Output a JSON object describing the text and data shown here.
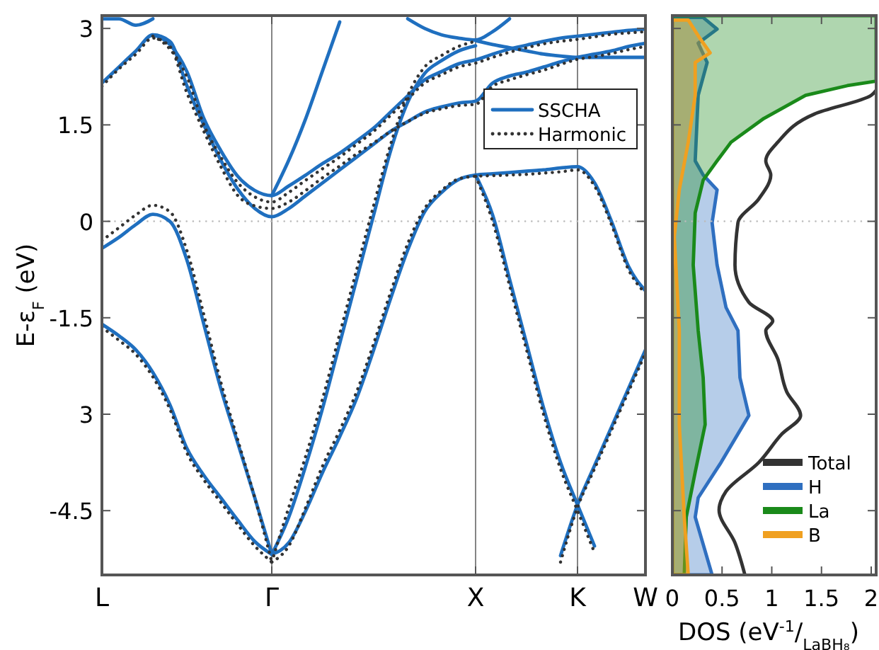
{
  "chart_data": [
    {
      "type": "line",
      "ylabel": "E-ε$_{F}$ (eV)",
      "categories": [
        "L",
        null,
        null,
        null,
        null,
        null,
        null,
        null,
        null,
        null,
        "Γ",
        null,
        null,
        null,
        null,
        null,
        null,
        null,
        null,
        null,
        null,
        null,
        "X",
        null,
        null,
        null,
        null,
        null,
        "K",
        null,
        null,
        null,
        "W"
      ],
      "ylim": [
        -5.5,
        3.2
      ],
      "yticks": [
        {
          "value": 3,
          "label": "3"
        },
        1.5,
        0,
        -1.5,
        {
          "value": -3,
          "label": "3"
        },
        -4.5
      ],
      "grid": "x",
      "legend": "top right",
      "ref_lines": [
        {
          "axis": "y",
          "value": 0,
          "color": "#bbbbbb",
          "line_style": "dotted"
        }
      ],
      "series": [
        {
          "name": "SSCHA",
          "color": "#1f6fbf",
          "line_style": "solid",
          "values": [
            -1.6,
            -1.78,
            -2.0,
            -2.35,
            -2.85,
            -3.53,
            -3.95,
            -4.3,
            -4.65,
            -4.98,
            -5.18,
            null,
            null,
            null,
            null,
            null,
            null,
            null,
            null,
            null,
            null,
            null,
            null,
            null,
            null,
            null,
            null,
            null,
            null,
            null,
            null,
            null,
            null
          ]
        },
        {
          "color": "#1f6fbf",
          "line_style": "solid",
          "values": [
            -0.42,
            -0.25,
            -0.05,
            0.11,
            0.0,
            -0.6,
            -1.6,
            -2.6,
            -3.45,
            -4.3,
            -5.18,
            null,
            null,
            null,
            null,
            null,
            null,
            null,
            null,
            null,
            null,
            null,
            null,
            null,
            null,
            null,
            null,
            null,
            null,
            null,
            null,
            null,
            null
          ]
        },
        {
          "color": "#1f6fbf",
          "line_style": "solid",
          "values": [
            null,
            null,
            null,
            null,
            null,
            null,
            null,
            null,
            null,
            null,
            -5.18,
            -4.6,
            -3.8,
            -2.9,
            -1.9,
            -0.9,
            0.1,
            1.1,
            1.85,
            2.3,
            2.5,
            2.65,
            2.73,
            null,
            null,
            null,
            null,
            null,
            null,
            null,
            null,
            null,
            null
          ]
        },
        {
          "color": "#1f6fbf",
          "line_style": "solid",
          "values": [
            null,
            null,
            null,
            null,
            null,
            null,
            null,
            null,
            null,
            null,
            -5.18,
            -5.0,
            -4.5,
            -3.9,
            -3.35,
            -2.75,
            -2.0,
            -1.2,
            -0.45,
            0.15,
            0.45,
            0.65,
            0.72,
            0.74,
            0.76,
            0.78,
            0.8,
            0.83,
            0.85,
            0.6,
            0.0,
            -0.7,
            -1.08
          ]
        },
        {
          "color": "#1f6fbf",
          "line_style": "solid",
          "values": [
            null,
            null,
            null,
            null,
            null,
            null,
            null,
            null,
            null,
            null,
            null,
            null,
            null,
            null,
            null,
            null,
            null,
            null,
            null,
            null,
            null,
            null,
            0.72,
            0.1,
            -0.9,
            -1.9,
            -2.9,
            -3.75,
            -4.41,
            -5.05,
            null,
            null,
            null
          ]
        },
        {
          "color": "#1f6fbf",
          "line_style": "solid",
          "values": [
            null,
            null,
            null,
            null,
            null,
            null,
            null,
            null,
            null,
            null,
            null,
            null,
            null,
            null,
            null,
            null,
            null,
            null,
            null,
            null,
            null,
            null,
            null,
            null,
            null,
            null,
            null,
            -5.2,
            -4.41,
            -3.8,
            -3.2,
            -2.6,
            -2.0
          ]
        },
        {
          "color": "#1f6fbf",
          "line_style": "solid",
          "values": [
            2.15,
            2.4,
            2.65,
            2.9,
            2.8,
            2.11,
            1.5,
            0.95,
            0.5,
            0.2,
            0.07,
            0.2,
            0.4,
            0.6,
            0.8,
            1.0,
            1.2,
            1.4,
            1.55,
            1.7,
            1.78,
            1.84,
            1.87,
            2.15,
            2.26,
            2.32,
            2.4,
            2.48,
            2.55,
            2.6,
            2.65,
            2.72,
            2.77
          ]
        },
        {
          "color": "#1f6fbf",
          "line_style": "solid",
          "values": [
            null,
            null,
            null,
            2.9,
            2.75,
            2.33,
            1.6,
            1.1,
            0.7,
            0.48,
            0.4,
            0.55,
            0.72,
            0.9,
            1.06,
            1.25,
            1.45,
            1.7,
            1.95,
            2.2,
            2.33,
            2.45,
            2.51,
            2.6,
            2.68,
            2.74,
            2.8,
            2.85,
            2.88,
            2.91,
            2.94,
            2.97,
            2.99
          ]
        },
        {
          "color": "#1f6fbf",
          "line_style": "solid",
          "values": [
            null,
            null,
            null,
            null,
            null,
            null,
            null,
            null,
            null,
            null,
            0.4,
            0.95,
            1.6,
            2.35,
            3.1,
            null,
            null,
            null,
            null,
            null,
            null,
            null,
            null,
            null,
            null,
            null,
            null,
            null,
            null,
            null,
            null,
            null,
            null
          ]
        },
        {
          "color": "#1f6fbf",
          "line_style": "solid",
          "values": [
            3.15,
            3.15,
            3.05,
            3.15,
            null,
            null,
            null,
            null,
            null,
            null,
            null,
            null,
            null,
            null,
            null,
            null,
            null,
            null,
            null,
            null,
            null,
            null,
            null,
            null,
            null,
            null,
            null,
            null,
            null,
            null,
            null,
            null,
            null
          ]
        },
        {
          "color": "#1f6fbf",
          "line_style": "solid",
          "values": [
            null,
            null,
            null,
            null,
            null,
            null,
            null,
            null,
            null,
            null,
            null,
            null,
            null,
            null,
            null,
            null,
            null,
            null,
            3.15,
            3.0,
            2.9,
            2.85,
            2.82,
            2.95,
            3.15,
            null,
            null,
            null,
            null,
            null,
            null,
            null,
            null
          ]
        },
        {
          "color": "#1f6fbf",
          "line_style": "solid",
          "values": [
            null,
            null,
            null,
            null,
            null,
            null,
            null,
            null,
            null,
            null,
            null,
            null,
            null,
            null,
            null,
            null,
            null,
            null,
            null,
            null,
            null,
            null,
            2.81,
            2.75,
            2.7,
            2.65,
            2.6,
            2.57,
            2.55,
            2.55,
            2.55,
            2.55,
            2.55
          ]
        },
        {
          "name": "Harmonic",
          "color": "#333333",
          "line_style": "dotted",
          "values": [
            -1.65,
            -1.85,
            -2.07,
            -2.42,
            -2.92,
            -3.6,
            -4.02,
            -4.37,
            -4.72,
            -5.05,
            -5.3,
            null,
            null,
            null,
            null,
            null,
            null,
            null,
            null,
            null,
            null,
            null,
            null,
            null,
            null,
            null,
            null,
            null,
            null,
            null,
            null,
            null,
            null
          ]
        },
        {
          "color": "#333333",
          "line_style": "dotted",
          "values": [
            -0.3,
            -0.1,
            0.1,
            0.25,
            0.15,
            -0.45,
            -1.45,
            -2.5,
            -3.4,
            -4.3,
            -5.3,
            null,
            null,
            null,
            null,
            null,
            null,
            null,
            null,
            null,
            null,
            null,
            null,
            null,
            null,
            null,
            null,
            null,
            null,
            null,
            null,
            null,
            null
          ]
        },
        {
          "color": "#333333",
          "line_style": "dotted",
          "values": [
            null,
            null,
            null,
            null,
            null,
            null,
            null,
            null,
            null,
            null,
            -5.3,
            -4.45,
            -3.65,
            -2.75,
            -1.75,
            -0.75,
            0.25,
            1.2,
            1.95,
            2.4,
            2.58,
            2.72,
            2.8,
            null,
            null,
            null,
            null,
            null,
            null,
            null,
            null,
            null,
            null
          ]
        },
        {
          "color": "#333333",
          "line_style": "dotted",
          "values": [
            null,
            null,
            null,
            null,
            null,
            null,
            null,
            null,
            null,
            null,
            -5.3,
            -5.05,
            -4.45,
            -3.8,
            -3.25,
            -2.65,
            -1.9,
            -1.1,
            -0.35,
            0.2,
            0.48,
            0.66,
            0.7,
            0.71,
            0.72,
            0.73,
            0.75,
            0.77,
            0.8,
            0.55,
            -0.05,
            -0.75,
            -1.12
          ]
        },
        {
          "color": "#333333",
          "line_style": "dotted",
          "values": [
            null,
            null,
            null,
            null,
            null,
            null,
            null,
            null,
            null,
            null,
            null,
            null,
            null,
            null,
            null,
            null,
            null,
            null,
            null,
            null,
            null,
            null,
            0.7,
            0.0,
            -1.0,
            -2.0,
            -3.0,
            -3.85,
            -4.5,
            -5.15,
            null,
            null,
            null
          ]
        },
        {
          "color": "#333333",
          "line_style": "dotted",
          "values": [
            null,
            null,
            null,
            null,
            null,
            null,
            null,
            null,
            null,
            null,
            null,
            null,
            null,
            null,
            null,
            null,
            null,
            null,
            null,
            null,
            null,
            null,
            null,
            null,
            null,
            null,
            null,
            -5.3,
            -4.45,
            -3.85,
            -3.25,
            -2.65,
            -2.05
          ]
        },
        {
          "color": "#333333",
          "line_style": "dotted",
          "values": [
            2.1,
            2.37,
            2.6,
            2.85,
            2.72,
            2.0,
            1.4,
            0.85,
            0.4,
            0.24,
            0.2,
            0.3,
            0.48,
            0.68,
            0.86,
            1.05,
            1.22,
            1.4,
            1.55,
            1.68,
            1.75,
            1.8,
            1.82,
            2.1,
            2.2,
            2.28,
            2.35,
            2.44,
            2.52,
            2.56,
            2.61,
            2.67,
            2.72
          ]
        },
        {
          "color": "#333333",
          "line_style": "dotted",
          "values": [
            null,
            null,
            null,
            2.88,
            2.68,
            2.25,
            1.5,
            1.0,
            0.6,
            0.38,
            0.3,
            0.45,
            0.64,
            0.82,
            1.0,
            1.2,
            1.4,
            1.65,
            1.9,
            2.15,
            2.28,
            2.4,
            2.46,
            2.55,
            2.63,
            2.7,
            2.76,
            2.8,
            2.83,
            2.87,
            2.91,
            2.93,
            2.95
          ]
        }
      ]
    },
    {
      "type": "line",
      "xlabel": "DOS (eV$^{-1}$/$_{LaBH₈}$)",
      "xlim": [
        0,
        2.05
      ],
      "xticks": [
        0,
        0.5,
        1,
        1.5,
        2
      ],
      "ylim": [
        -5.5,
        3.2
      ],
      "yticks": [
        3,
        1.5,
        0,
        -1.5,
        -3,
        -4.5
      ],
      "tick_labels": "x",
      "legend": "bottom right",
      "orientation": "horizontal",
      "ref_lines": [
        {
          "axis": "y",
          "value": 0,
          "color": "#bbbbbb",
          "line_style": "dotted"
        }
      ],
      "series": [
        {
          "name": "Total",
          "color": "#333333",
          "values": [
            0.73,
            0.63,
            0.47,
            0.54,
            0.87,
            1.1,
            1.29,
            1.15,
            1.06,
            0.94,
            1.01,
            0.77,
            0.63,
            0.66,
            0.87,
            0.99,
            0.94,
            1.06,
            1.43,
            2.0,
            2.05
          ],
          "x": [
            -5.5,
            -5.0,
            -4.49,
            -4.2,
            -3.75,
            -3.31,
            -3.02,
            -2.65,
            -2.14,
            -1.7,
            -1.55,
            -1.26,
            -0.68,
            -0.02,
            0.35,
            0.72,
            0.94,
            1.23,
            1.67,
            1.96,
            2.04
          ]
        },
        {
          "name": "H",
          "type": "area",
          "color": "#2f6fc0",
          "values": [
            0.4,
            0.23,
            0.26,
            0.49,
            0.77,
            0.68,
            0.66,
            0.54,
            0.45,
            0.4,
            0.45,
            0.31,
            0.23,
            0.26,
            0.35,
            0.26,
            0.45,
            0.31
          ],
          "x": [
            -5.5,
            -4.6,
            -4.3,
            -3.75,
            -3.02,
            -2.43,
            -1.7,
            -1.34,
            -0.68,
            -0.02,
            0.49,
            0.72,
            0.94,
            1.96,
            2.47,
            2.77,
            2.99,
            3.17
          ]
        },
        {
          "name": "La",
          "type": "area",
          "color": "#1a8a1a",
          "values": [
            0.12,
            0.14,
            0.23,
            0.33,
            0.31,
            0.26,
            0.21,
            0.23,
            0.31,
            0.45,
            0.59,
            0.92,
            1.34,
            1.76,
            2.05,
            2.05
          ],
          "x": [
            -5.5,
            -4.6,
            -3.9,
            -3.16,
            -2.43,
            -1.7,
            -0.68,
            0.13,
            0.64,
            0.94,
            1.23,
            1.6,
            1.96,
            2.11,
            2.18,
            3.2
          ]
        },
        {
          "name": "B",
          "type": "area",
          "color": "#f0a020",
          "values": [
            0.16,
            0.12,
            0.07,
            0.07,
            0.02,
            0.07,
            0.16,
            0.23,
            0.23,
            0.38,
            0.28,
            0.16
          ],
          "x": [
            -5.5,
            -4.6,
            -3.16,
            -1.7,
            -0.24,
            0.49,
            1.23,
            1.96,
            2.47,
            2.62,
            2.84,
            3.13
          ]
        }
      ]
    }
  ]
}
